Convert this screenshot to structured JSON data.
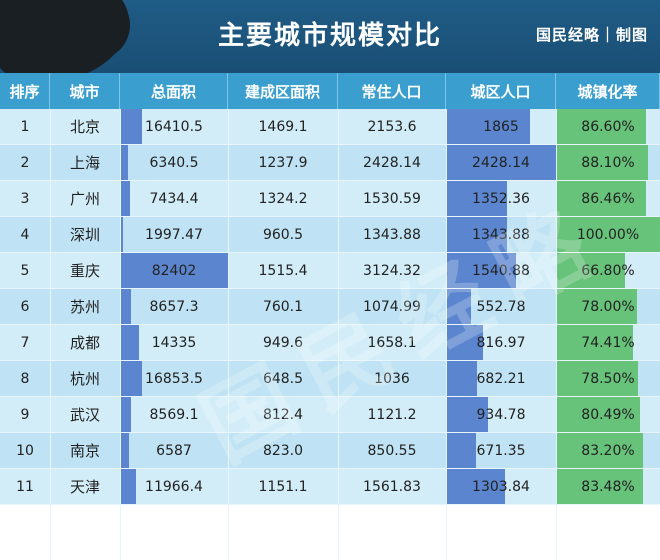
{
  "header": {
    "title": "主要城市规模对比",
    "brand": "国民经略｜制图"
  },
  "watermark": "国民经略",
  "chart_data": {
    "type": "table",
    "title": "主要城市规模对比",
    "columns": [
      "排序",
      "城市",
      "总面积",
      "建成区面积",
      "常住人口",
      "城区人口",
      "城镇化率"
    ],
    "rows": [
      {
        "rank": "1",
        "city": "北京",
        "total_area": "16410.5",
        "built_area": "1469.1",
        "resident_pop": "2153.6",
        "urban_pop": "1865",
        "urban_rate": "86.60%"
      },
      {
        "rank": "2",
        "city": "上海",
        "total_area": "6340.5",
        "built_area": "1237.9",
        "resident_pop": "2428.14",
        "urban_pop": "2428.14",
        "urban_rate": "88.10%"
      },
      {
        "rank": "3",
        "city": "广州",
        "total_area": "7434.4",
        "built_area": "1324.2",
        "resident_pop": "1530.59",
        "urban_pop": "1352.36",
        "urban_rate": "86.46%"
      },
      {
        "rank": "4",
        "city": "深圳",
        "total_area": "1997.47",
        "built_area": "960.5",
        "resident_pop": "1343.88",
        "urban_pop": "1343.88",
        "urban_rate": "100.00%"
      },
      {
        "rank": "5",
        "city": "重庆",
        "total_area": "82402",
        "built_area": "1515.4",
        "resident_pop": "3124.32",
        "urban_pop": "1540.88",
        "urban_rate": "66.80%"
      },
      {
        "rank": "6",
        "city": "苏州",
        "total_area": "8657.3",
        "built_area": "760.1",
        "resident_pop": "1074.99",
        "urban_pop": "552.78",
        "urban_rate": "78.00%"
      },
      {
        "rank": "7",
        "city": "成都",
        "total_area": "14335",
        "built_area": "949.6",
        "resident_pop": "1658.1",
        "urban_pop": "816.97",
        "urban_rate": "74.41%"
      },
      {
        "rank": "8",
        "city": "杭州",
        "total_area": "16853.5",
        "built_area": "648.5",
        "resident_pop": "1036",
        "urban_pop": "682.21",
        "urban_rate": "78.50%"
      },
      {
        "rank": "9",
        "city": "武汉",
        "total_area": "8569.1",
        "built_area": "812.4",
        "resident_pop": "1121.2",
        "urban_pop": "934.78",
        "urban_rate": "80.49%"
      },
      {
        "rank": "10",
        "city": "南京",
        "total_area": "6587",
        "built_area": "823.0",
        "resident_pop": "850.55",
        "urban_pop": "671.35",
        "urban_rate": "83.20%"
      },
      {
        "rank": "11",
        "city": "天津",
        "total_area": "11966.4",
        "built_area": "1151.1",
        "resident_pop": "1561.83",
        "urban_pop": "1303.84",
        "urban_rate": "83.48%"
      }
    ],
    "data_bars": {
      "total_area_max": 82402,
      "urban_pop_max": 2428.14,
      "urban_rate_max": 100
    },
    "colors": {
      "header_bg": "#1a4e74",
      "column_header": "#3a9fcf",
      "row_odd": "#d2edf8",
      "row_even": "#bfe3f4",
      "bar_blue": "#5b86cf",
      "bar_green": "#67c27a"
    }
  }
}
